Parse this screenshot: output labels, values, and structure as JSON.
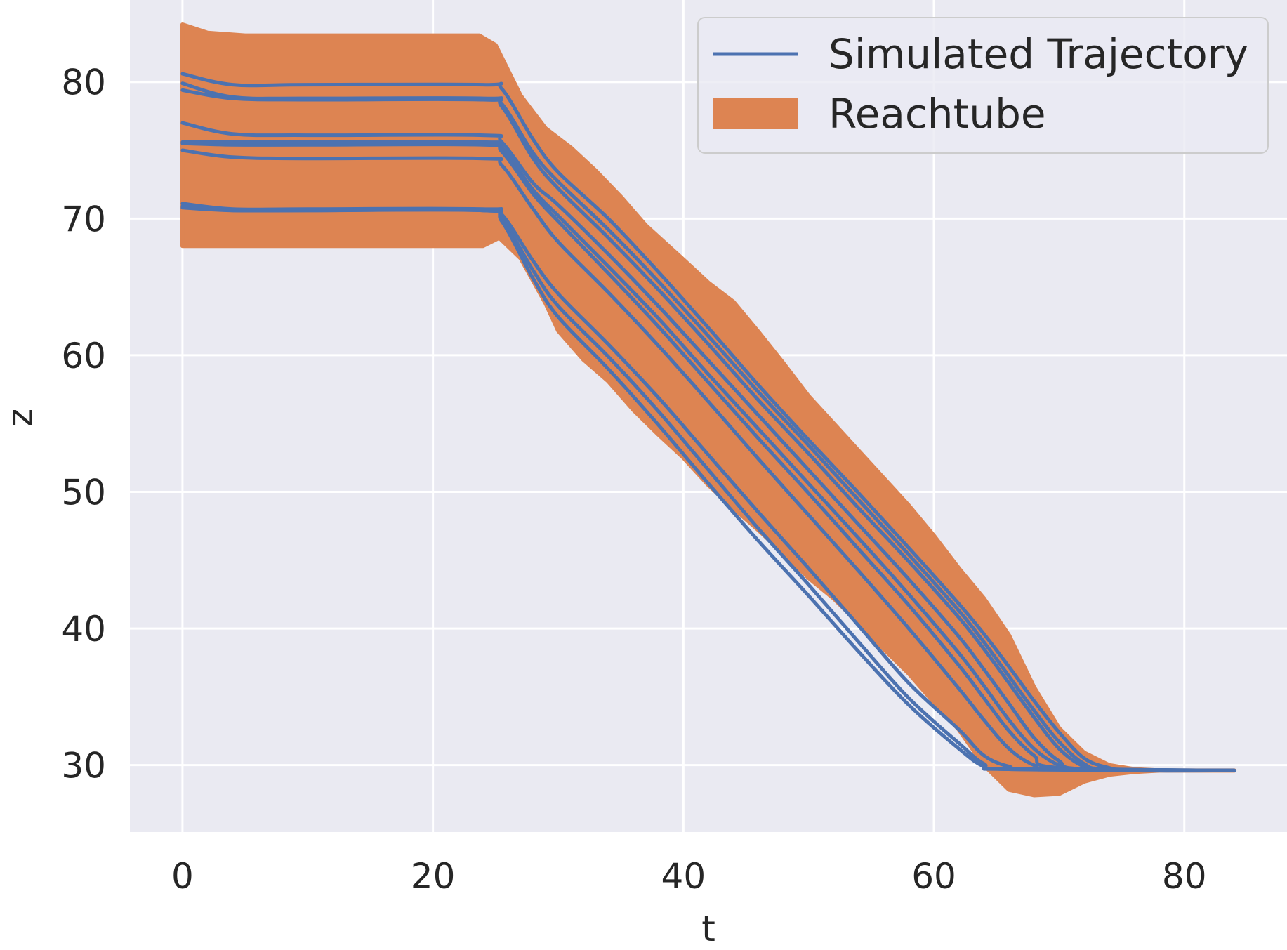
{
  "chart_data": {
    "type": "line",
    "title": "",
    "xlabel": "t",
    "ylabel": "z",
    "xlim": [
      -4.2,
      88.2
    ],
    "ylim": [
      25.1,
      86.0
    ],
    "xticks": [
      0,
      20,
      40,
      60,
      80
    ],
    "yticks": [
      30,
      40,
      50,
      60,
      70,
      80
    ],
    "grid": true,
    "legend_position": "top-right",
    "colors": {
      "background": "#eaeaf2",
      "grid": "#ffffff",
      "trajectory": "#4c72b0",
      "reachtube": "#dd8452"
    },
    "legend": [
      {
        "label": "Simulated Trajectory",
        "kind": "line",
        "color": "#4c72b0"
      },
      {
        "label": "Reachtube",
        "kind": "patch",
        "color": "#dd8452"
      }
    ],
    "reachtube": {
      "label": "Reachtube",
      "upper": [
        [
          0,
          84.2
        ],
        [
          2,
          83.6
        ],
        [
          5,
          83.4
        ],
        [
          10,
          83.4
        ],
        [
          20,
          83.4
        ],
        [
          23.7,
          83.4
        ],
        [
          25,
          82.7
        ],
        [
          27,
          79.0
        ],
        [
          29,
          76.6
        ],
        [
          31,
          75.2
        ],
        [
          33,
          73.5
        ],
        [
          35,
          71.6
        ],
        [
          37,
          69.5
        ],
        [
          40,
          67.0
        ],
        [
          42,
          65.3
        ],
        [
          44,
          63.9
        ],
        [
          46,
          61.7
        ],
        [
          48,
          59.4
        ],
        [
          50,
          57.0
        ],
        [
          52,
          55.0
        ],
        [
          54,
          53.0
        ],
        [
          56,
          51.0
        ],
        [
          58,
          49.0
        ],
        [
          60,
          46.8
        ],
        [
          62,
          44.4
        ],
        [
          64,
          42.2
        ],
        [
          66,
          39.5
        ],
        [
          68,
          35.7
        ],
        [
          70,
          32.7
        ],
        [
          72,
          30.9
        ],
        [
          74,
          30.0
        ],
        [
          76,
          29.7
        ],
        [
          78,
          29.6
        ],
        [
          84,
          29.6
        ]
      ],
      "lower": [
        [
          0,
          68.0
        ],
        [
          10,
          68.0
        ],
        [
          20,
          68.0
        ],
        [
          24,
          68.0
        ],
        [
          25.3,
          68.6
        ],
        [
          27,
          67.1
        ],
        [
          29,
          63.8
        ],
        [
          30,
          61.8
        ],
        [
          32,
          59.7
        ],
        [
          34,
          58.1
        ],
        [
          36,
          56.0
        ],
        [
          38,
          54.2
        ],
        [
          40,
          52.5
        ],
        [
          42,
          50.5
        ],
        [
          44,
          48.8
        ],
        [
          46,
          47.2
        ],
        [
          48,
          45.5
        ],
        [
          50,
          43.7
        ],
        [
          52,
          42.2
        ],
        [
          54,
          40.4
        ],
        [
          56,
          38.5
        ],
        [
          58,
          36.7
        ],
        [
          60,
          34.6
        ],
        [
          62,
          32.6
        ],
        [
          64,
          30.0
        ],
        [
          66,
          28.2
        ],
        [
          68,
          27.8
        ],
        [
          70,
          27.9
        ],
        [
          72,
          28.8
        ],
        [
          74,
          29.3
        ],
        [
          76,
          29.5
        ],
        [
          78,
          29.6
        ],
        [
          84,
          29.6
        ]
      ]
    },
    "trajectory_legend_label": "Simulated Trajectory",
    "series": [
      {
        "values": [
          [
            0,
            80.6
          ],
          [
            4,
            79.8
          ],
          [
            10,
            79.8
          ],
          [
            24,
            79.8
          ],
          [
            25.5,
            79.5
          ],
          [
            28,
            75.8
          ],
          [
            30,
            73.4
          ],
          [
            34,
            70.0
          ],
          [
            38,
            66.1
          ],
          [
            42,
            62.0
          ],
          [
            46,
            57.8
          ],
          [
            50,
            53.8
          ],
          [
            54,
            49.9
          ],
          [
            58,
            45.9
          ],
          [
            62,
            41.8
          ],
          [
            64,
            39.6
          ],
          [
            66,
            37.2
          ],
          [
            68,
            34.7
          ],
          [
            70,
            32.4
          ],
          [
            72,
            30.5
          ],
          [
            74,
            29.8
          ],
          [
            76,
            29.6
          ],
          [
            84,
            29.6
          ]
        ]
      },
      {
        "values": [
          [
            0,
            79.9
          ],
          [
            4,
            78.9
          ],
          [
            10,
            78.8
          ],
          [
            24,
            78.8
          ],
          [
            25.5,
            78.4
          ],
          [
            28,
            74.8
          ],
          [
            30,
            72.7
          ],
          [
            34,
            69.2
          ],
          [
            38,
            65.4
          ],
          [
            42,
            61.4
          ],
          [
            46,
            57.3
          ],
          [
            50,
            53.4
          ],
          [
            54,
            49.4
          ],
          [
            58,
            45.4
          ],
          [
            62,
            41.3
          ],
          [
            64,
            39.0
          ],
          [
            66,
            36.5
          ],
          [
            68,
            34.0
          ],
          [
            70,
            31.7
          ],
          [
            72,
            30.1
          ],
          [
            74,
            29.7
          ],
          [
            84,
            29.6
          ]
        ]
      },
      {
        "values": [
          [
            0,
            79.4
          ],
          [
            4,
            78.8
          ],
          [
            10,
            78.7
          ],
          [
            24,
            78.7
          ],
          [
            25.5,
            78.2
          ],
          [
            28,
            74.4
          ],
          [
            30,
            72.2
          ],
          [
            34,
            68.6
          ],
          [
            38,
            64.8
          ],
          [
            42,
            60.8
          ],
          [
            46,
            56.7
          ],
          [
            50,
            52.8
          ],
          [
            54,
            48.8
          ],
          [
            58,
            44.9
          ],
          [
            62,
            40.8
          ],
          [
            64,
            38.5
          ],
          [
            66,
            36.0
          ],
          [
            68,
            33.5
          ],
          [
            70,
            31.2
          ],
          [
            72,
            29.9
          ],
          [
            74,
            29.7
          ],
          [
            84,
            29.6
          ]
        ]
      },
      {
        "values": [
          [
            0,
            77.0
          ],
          [
            4,
            76.2
          ],
          [
            10,
            76.1
          ],
          [
            24,
            76.1
          ],
          [
            25.5,
            75.6
          ],
          [
            28,
            72.6
          ],
          [
            30,
            71.0
          ],
          [
            34,
            67.4
          ],
          [
            38,
            63.6
          ],
          [
            42,
            59.6
          ],
          [
            46,
            55.6
          ],
          [
            50,
            51.6
          ],
          [
            54,
            47.6
          ],
          [
            58,
            43.6
          ],
          [
            62,
            39.4
          ],
          [
            64,
            37.0
          ],
          [
            66,
            34.5
          ],
          [
            68,
            32.0
          ],
          [
            70,
            30.3
          ],
          [
            72,
            29.7
          ],
          [
            84,
            29.6
          ]
        ]
      },
      {
        "values": [
          [
            0,
            75.6
          ],
          [
            4,
            75.6
          ],
          [
            10,
            75.6
          ],
          [
            24,
            75.6
          ],
          [
            25.5,
            75.2
          ],
          [
            28,
            72.1
          ],
          [
            30,
            70.2
          ],
          [
            34,
            66.5
          ],
          [
            38,
            62.7
          ],
          [
            42,
            58.6
          ],
          [
            46,
            54.6
          ],
          [
            50,
            50.6
          ],
          [
            54,
            46.6
          ],
          [
            58,
            42.5
          ],
          [
            62,
            38.2
          ],
          [
            64,
            35.8
          ],
          [
            66,
            33.3
          ],
          [
            68,
            31.2
          ],
          [
            70,
            30.0
          ],
          [
            72,
            29.7
          ],
          [
            84,
            29.6
          ]
        ]
      },
      {
        "values": [
          [
            0,
            75.5
          ],
          [
            4,
            75.4
          ],
          [
            10,
            75.4
          ],
          [
            24,
            75.4
          ],
          [
            25.5,
            74.9
          ],
          [
            28,
            71.8
          ],
          [
            30,
            69.8
          ],
          [
            34,
            66.0
          ],
          [
            38,
            62.1
          ],
          [
            42,
            58.0
          ],
          [
            46,
            53.9
          ],
          [
            50,
            49.9
          ],
          [
            54,
            45.8
          ],
          [
            58,
            41.7
          ],
          [
            62,
            37.3
          ],
          [
            64,
            34.9
          ],
          [
            66,
            32.5
          ],
          [
            68,
            30.7
          ],
          [
            70,
            29.8
          ],
          [
            84,
            29.6
          ]
        ]
      },
      {
        "values": [
          [
            0,
            75.0
          ],
          [
            4,
            74.5
          ],
          [
            10,
            74.4
          ],
          [
            24,
            74.4
          ],
          [
            25.5,
            73.9
          ],
          [
            28,
            70.7
          ],
          [
            30,
            68.3
          ],
          [
            34,
            64.6
          ],
          [
            38,
            60.7
          ],
          [
            42,
            56.6
          ],
          [
            46,
            52.4
          ],
          [
            50,
            48.3
          ],
          [
            54,
            44.2
          ],
          [
            58,
            40.0
          ],
          [
            62,
            35.6
          ],
          [
            64,
            33.3
          ],
          [
            66,
            31.2
          ],
          [
            68,
            30.0
          ],
          [
            70,
            29.7
          ],
          [
            84,
            29.6
          ]
        ]
      },
      {
        "values": [
          [
            0,
            71.1
          ],
          [
            4,
            70.7
          ],
          [
            10,
            70.7
          ],
          [
            24,
            70.7
          ],
          [
            25.5,
            70.3
          ],
          [
            28,
            66.9
          ],
          [
            30,
            64.5
          ],
          [
            34,
            60.8
          ],
          [
            38,
            56.9
          ],
          [
            42,
            52.7
          ],
          [
            46,
            48.5
          ],
          [
            50,
            44.4
          ],
          [
            54,
            40.2
          ],
          [
            58,
            36.0
          ],
          [
            62,
            32.6
          ],
          [
            64,
            30.7
          ],
          [
            66,
            29.9
          ],
          [
            68,
            29.7
          ],
          [
            84,
            29.6
          ]
        ]
      },
      {
        "values": [
          [
            0,
            70.9
          ],
          [
            4,
            70.6
          ],
          [
            10,
            70.6
          ],
          [
            24,
            70.6
          ],
          [
            25.5,
            70.0
          ],
          [
            28,
            66.2
          ],
          [
            30,
            63.6
          ],
          [
            34,
            59.9
          ],
          [
            38,
            55.9
          ],
          [
            42,
            51.6
          ],
          [
            46,
            47.3
          ],
          [
            50,
            43.2
          ],
          [
            54,
            39.0
          ],
          [
            58,
            34.9
          ],
          [
            62,
            31.6
          ],
          [
            64,
            30.1
          ],
          [
            66,
            29.7
          ],
          [
            84,
            29.6
          ]
        ]
      },
      {
        "values": [
          [
            0,
            70.8
          ],
          [
            4,
            70.6
          ],
          [
            10,
            70.6
          ],
          [
            24,
            70.6
          ],
          [
            25.5,
            69.8
          ],
          [
            28,
            65.6
          ],
          [
            30,
            62.8
          ],
          [
            34,
            59.0
          ],
          [
            38,
            54.9
          ],
          [
            42,
            50.6
          ],
          [
            46,
            46.4
          ],
          [
            50,
            42.4
          ],
          [
            54,
            38.3
          ],
          [
            58,
            34.4
          ],
          [
            62,
            31.2
          ],
          [
            64,
            29.9
          ],
          [
            66,
            29.7
          ],
          [
            84,
            29.6
          ]
        ]
      }
    ]
  }
}
